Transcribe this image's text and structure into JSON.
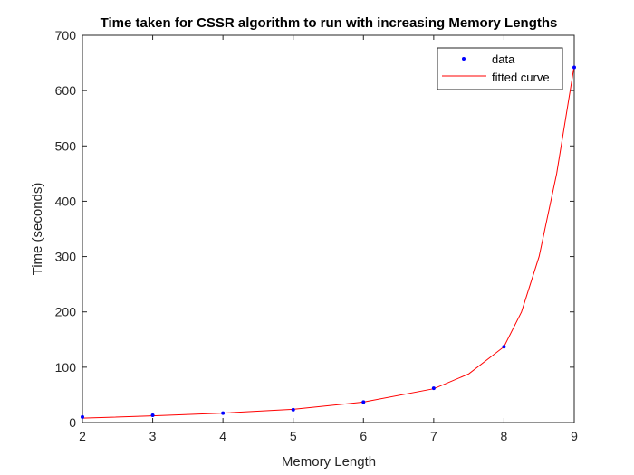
{
  "chart_data": {
    "type": "scatter",
    "title": "Time taken for CSSR algorithm to run with increasing Memory Lengths",
    "xlabel": "Memory Length",
    "ylabel": "Time (seconds)",
    "xlim": [
      2,
      9
    ],
    "ylim": [
      0,
      700
    ],
    "xticks": [
      2,
      3,
      4,
      5,
      6,
      7,
      8,
      9
    ],
    "yticks": [
      0,
      100,
      200,
      300,
      400,
      500,
      600,
      700
    ],
    "grid": false,
    "legend_position": "top-right",
    "series": [
      {
        "name": "data",
        "kind": "points",
        "color": "#0000ff",
        "x": [
          2,
          3,
          4,
          5,
          6,
          7,
          8,
          9
        ],
        "y": [
          10,
          13,
          17,
          23,
          37,
          62,
          137,
          642
        ]
      },
      {
        "name": "fitted curve",
        "kind": "line",
        "color": "#ff0000",
        "x": [
          2,
          3,
          4,
          5,
          6,
          7,
          7.5,
          8,
          8.25,
          8.5,
          8.75,
          9
        ],
        "y": [
          8,
          12,
          17,
          24,
          37,
          61,
          88,
          137,
          200,
          300,
          450,
          645
        ]
      }
    ]
  }
}
